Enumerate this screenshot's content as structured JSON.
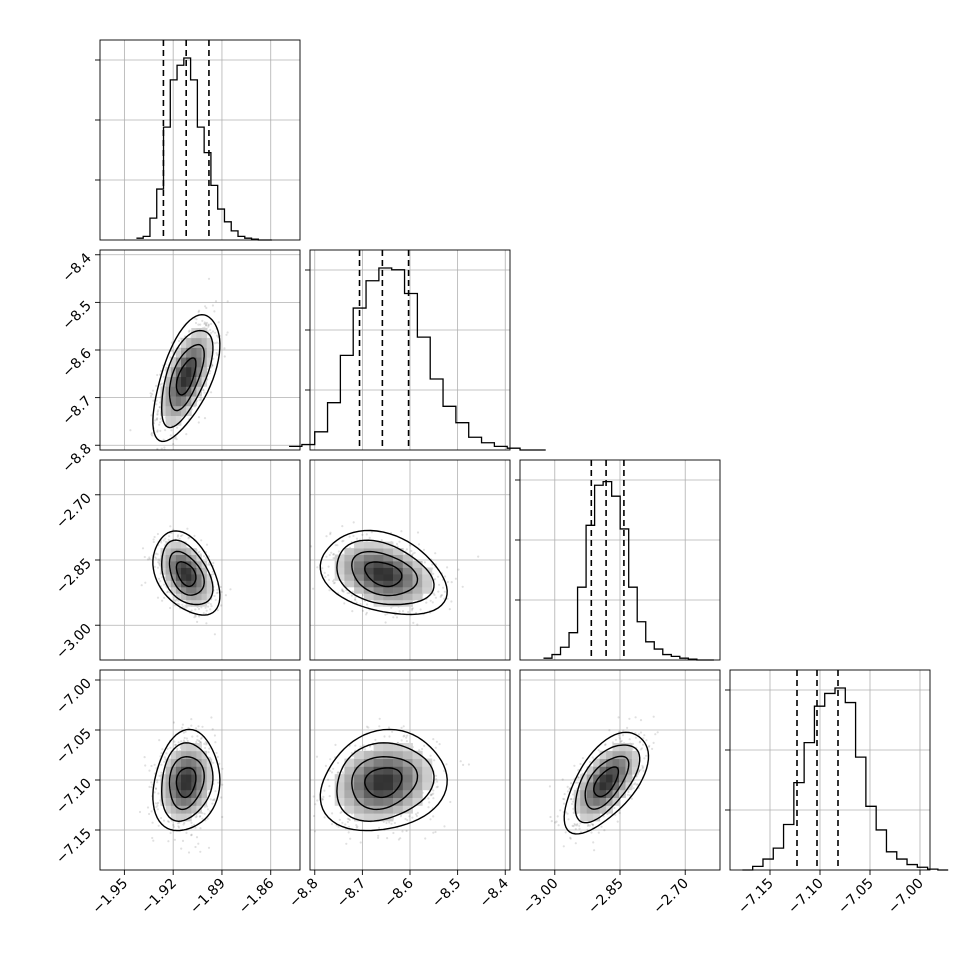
{
  "chart_data": {
    "type": "corner",
    "parameters": [
      {
        "range": [
          -1.965,
          -1.842
        ],
        "ticks": [
          -1.95,
          -1.92,
          -1.89,
          -1.86
        ],
        "tick_labels": [
          "−1.95",
          "−1.92",
          "−1.89",
          "−1.86"
        ],
        "quantiles": [
          -1.926,
          -1.912,
          -1.898
        ],
        "mean": -1.912,
        "sd": 0.0085
      },
      {
        "range": [
          -8.81,
          -8.39
        ],
        "ticks": [
          -8.8,
          -8.7,
          -8.6,
          -8.5,
          -8.4
        ],
        "tick_labels": [
          "−8.8",
          "−8.7",
          "−8.6",
          "−8.5",
          "−8.4"
        ],
        "quantiles": [
          -8.706,
          -8.658,
          -8.603
        ],
        "mean": -8.656,
        "sd": 0.055
      },
      {
        "range": [
          -3.08,
          -2.62
        ],
        "ticks": [
          -3.0,
          -2.85,
          -2.7
        ],
        "tick_labels": [
          "−3.00",
          "−2.85",
          "−2.70"
        ],
        "quantiles": [
          -2.916,
          -2.882,
          -2.841
        ],
        "mean": -2.882,
        "sd": 0.04
      },
      {
        "range": [
          -7.19,
          -6.99
        ],
        "ticks": [
          -7.15,
          -7.1,
          -7.05,
          -7.0
        ],
        "tick_labels": [
          "−7.15",
          "−7.10",
          "−7.05",
          "−7.00"
        ],
        "quantiles": [
          -7.123,
          -7.103,
          -7.082
        ],
        "mean": -7.102,
        "sd": 0.021
      }
    ],
    "correlations": [
      {
        "pair": [
          0,
          1
        ],
        "rho": 0.6
      },
      {
        "pair": [
          0,
          2
        ],
        "rho": -0.4
      },
      {
        "pair": [
          1,
          2
        ],
        "rho": -0.3
      },
      {
        "pair": [
          0,
          3
        ],
        "rho": 0.15
      },
      {
        "pair": [
          1,
          3
        ],
        "rho": 0.15
      },
      {
        "pair": [
          2,
          3
        ],
        "rho": 0.6
      }
    ],
    "histograms": [
      [
        0.01,
        0.02,
        0.12,
        0.28,
        0.62,
        0.88,
        0.96,
        1.0,
        0.88,
        0.62,
        0.48,
        0.3,
        0.17,
        0.1,
        0.05,
        0.02,
        0.01,
        0.005,
        0.0,
        0.0
      ],
      [
        0.02,
        0.03,
        0.1,
        0.26,
        0.52,
        0.78,
        0.93,
        1.0,
        0.99,
        0.86,
        0.62,
        0.39,
        0.24,
        0.15,
        0.07,
        0.04,
        0.02,
        0.01,
        0.0,
        0.0
      ],
      [
        0.01,
        0.03,
        0.07,
        0.15,
        0.4,
        0.74,
        0.96,
        0.98,
        0.9,
        0.72,
        0.4,
        0.21,
        0.1,
        0.06,
        0.03,
        0.02,
        0.01,
        0.005,
        0.0,
        0.0
      ],
      [
        0.0,
        0.02,
        0.06,
        0.12,
        0.25,
        0.48,
        0.7,
        0.9,
        0.97,
        1.0,
        0.92,
        0.62,
        0.35,
        0.22,
        0.1,
        0.06,
        0.03,
        0.015,
        0.005,
        0.0
      ]
    ],
    "grid": true,
    "scatter": true,
    "contours": true
  }
}
